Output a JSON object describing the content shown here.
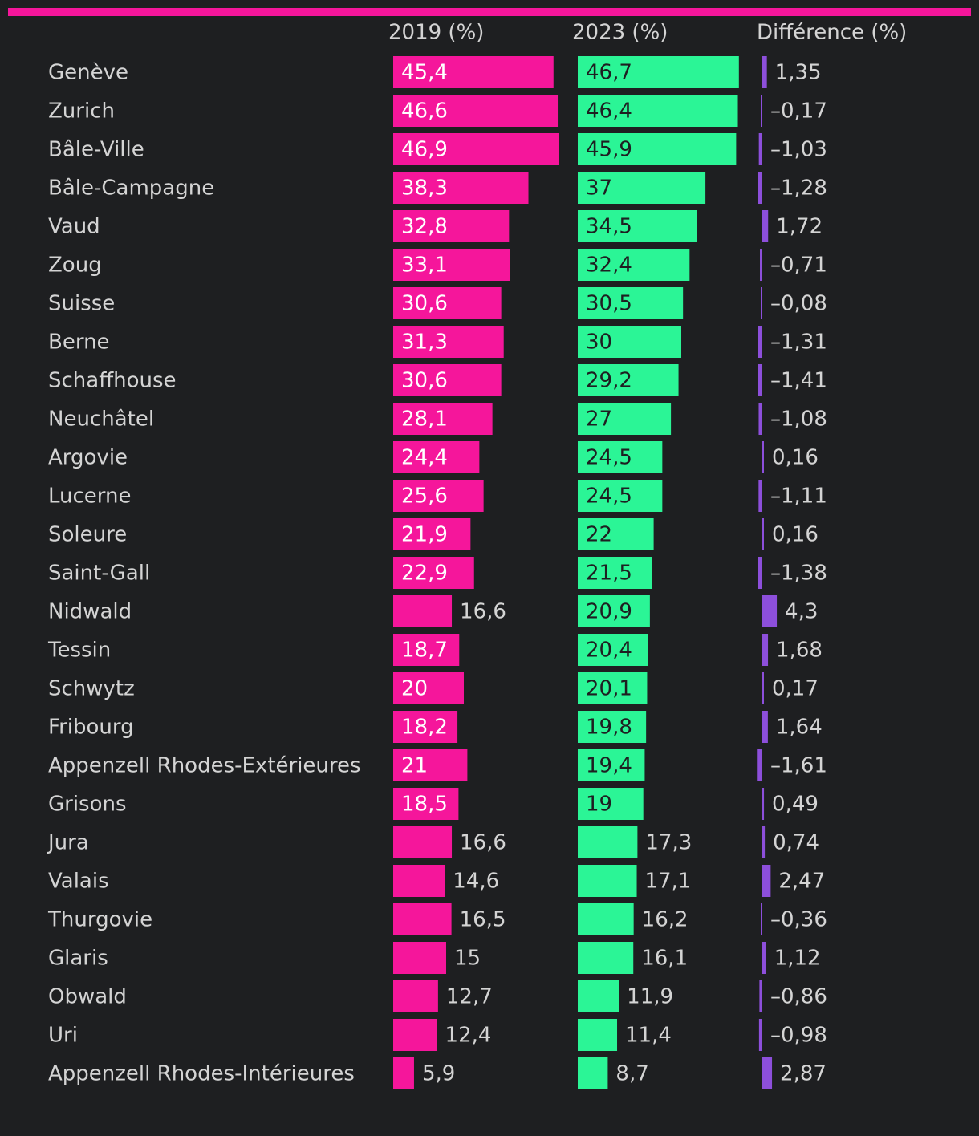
{
  "colors": {
    "background": "#1e1f21",
    "accent": "#f5169b",
    "series_2019": "#f5169b",
    "series_2023": "#2bf596",
    "series_diff": "#8d4fdb",
    "text": "#d4d4d4",
    "bar_label_on_pink": "#ffffff",
    "bar_label_on_green": "#1e1f21"
  },
  "chart_data": {
    "type": "bar",
    "layout": "table",
    "columns": [
      "2019 (%)",
      "2023 (%)",
      "Différence (%)"
    ],
    "categories": [
      "Genève",
      "Zurich",
      "Bâle-Ville",
      "Bâle-Campagne",
      "Vaud",
      "Zoug",
      "Suisse",
      "Berne",
      "Schaffhouse",
      "Neuchâtel",
      "Argovie",
      "Lucerne",
      "Soleure",
      "Saint-Gall",
      "Nidwald",
      "Tessin",
      "Schwytz",
      "Fribourg",
      "Appenzell Rhodes-Extérieures",
      "Grisons",
      "Jura",
      "Valais",
      "Thurgovie",
      "Glaris",
      "Obwald",
      "Uri",
      "Appenzell Rhodes-Intérieures"
    ],
    "series": [
      {
        "name": "2019 (%)",
        "values": [
          45.4,
          46.6,
          46.9,
          38.3,
          32.8,
          33.1,
          30.6,
          31.3,
          30.6,
          28.1,
          24.4,
          25.6,
          21.9,
          22.9,
          16.6,
          18.7,
          20,
          18.2,
          21,
          18.5,
          16.6,
          14.6,
          16.5,
          15,
          12.7,
          12.4,
          5.9
        ],
        "labels": [
          "45,4",
          "46,6",
          "46,9",
          "38,3",
          "32,8",
          "33,1",
          "30,6",
          "31,3",
          "30,6",
          "28,1",
          "24,4",
          "25,6",
          "21,9",
          "22,9",
          "16,6",
          "18,7",
          "20",
          "18,2",
          "21",
          "18,5",
          "16,6",
          "14,6",
          "16,5",
          "15",
          "12,7",
          "12,4",
          "5,9"
        ]
      },
      {
        "name": "2023 (%)",
        "values": [
          46.7,
          46.4,
          45.9,
          37,
          34.5,
          32.4,
          30.5,
          30,
          29.2,
          27,
          24.5,
          24.5,
          22,
          21.5,
          20.9,
          20.4,
          20.1,
          19.8,
          19.4,
          19,
          17.3,
          17.1,
          16.2,
          16.1,
          11.9,
          11.4,
          8.7
        ],
        "labels": [
          "46,7",
          "46,4",
          "45,9",
          "37",
          "34,5",
          "32,4",
          "30,5",
          "30",
          "29,2",
          "27",
          "24,5",
          "24,5",
          "22",
          "21,5",
          "20,9",
          "20,4",
          "20,1",
          "19,8",
          "19,4",
          "19",
          "17,3",
          "17,1",
          "16,2",
          "16,1",
          "11,9",
          "11,4",
          "8,7"
        ]
      },
      {
        "name": "Différence (%)",
        "values": [
          1.35,
          -0.17,
          -1.03,
          -1.28,
          1.72,
          -0.71,
          -0.08,
          -1.31,
          -1.41,
          -1.08,
          0.16,
          -1.11,
          0.16,
          -1.38,
          4.3,
          1.68,
          0.17,
          1.64,
          -1.61,
          0.49,
          0.74,
          2.47,
          -0.36,
          1.12,
          -0.86,
          -0.98,
          2.87
        ],
        "labels": [
          "1,35",
          "–0,17",
          "–1,03",
          "–1,28",
          "1,72",
          "–0,71",
          "–0,08",
          "–1,31",
          "–1,41",
          "–1,08",
          "0,16",
          "–1,11",
          "0,16",
          "–1,38",
          "4,3",
          "1,68",
          "0,17",
          "1,64",
          "–1,61",
          "0,49",
          "0,74",
          "2,47",
          "–0,36",
          "1,12",
          "–0,86",
          "–0,98",
          "2,87"
        ]
      }
    ]
  }
}
